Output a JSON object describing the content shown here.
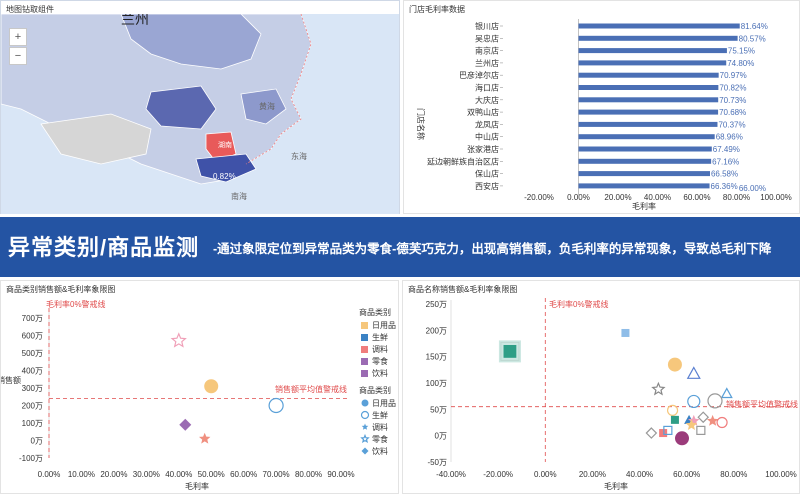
{
  "map": {
    "title": "地图钻取组件",
    "zoom_in": "+",
    "zoom_out": "−",
    "labels": [
      "兰州",
      "黄海",
      "东海",
      "南海",
      "湖南",
      "0.82%"
    ]
  },
  "bar": {
    "title": "门店毛利率数据",
    "ylabel": "门店名称",
    "xlabel": "毛利率",
    "cut_label": "66.00%"
  },
  "banner": {
    "title": "异常类别/商品监测",
    "desc": "-通过象限定位到异常品类为零食-德芙巧克力，出现高销售额，负毛利率的异常现象，导致总毛利下降"
  },
  "scatter1": {
    "title": "商品类别销售额&毛利率象限图",
    "threshold_label": "毛利率0%警戒线",
    "avg_label": "销售额平均值警戒线",
    "legend_title_1": "商品类别",
    "legend_title_2": "商品类别"
  },
  "scatter2": {
    "title": "商品名称销售额&毛利率象限图",
    "threshold_label": "毛利率0%警戒线",
    "avg_label": "销售额平均值警戒线"
  },
  "chart_data": [
    {
      "type": "bar",
      "orientation": "horizontal",
      "title": "门店毛利率数据",
      "xlabel": "毛利率",
      "ylabel": "门店名称",
      "categories": [
        "银川店",
        "吴忠店",
        "南京店",
        "兰州店",
        "巴彦淖尔店",
        "海口店",
        "大庆店",
        "双鸭山店",
        "龙凤店",
        "中山店",
        "张家港店",
        "延边朝鲜族自治区店",
        "保山店",
        "西安店"
      ],
      "values": [
        0.8164,
        0.8057,
        0.7515,
        0.748,
        0.7097,
        0.7082,
        0.7073,
        0.7068,
        0.7037,
        0.6896,
        0.6749,
        0.6716,
        0.6658,
        0.6636
      ],
      "value_labels": [
        "81.64%",
        "80.57%",
        "75.15%",
        "74.80%",
        "70.97%",
        "70.82%",
        "70.73%",
        "70.68%",
        "70.37%",
        "68.96%",
        "67.49%",
        "67.16%",
        "66.58%",
        "66.36%"
      ],
      "xlim": [
        -0.2,
        1.0
      ],
      "xticks": [
        "-20.00%",
        "0.00%",
        "20.00%",
        "40.00%",
        "60.00%",
        "80.00%",
        "100.00%"
      ],
      "color": "#4a6fb5"
    },
    {
      "type": "scatter",
      "title": "商品类别销售额&毛利率象限图",
      "xlabel": "毛利率",
      "ylabel": "销售额",
      "xlim": [
        0,
        0.9
      ],
      "ylim": [
        -100,
        700
      ],
      "xticks": [
        "0.00%",
        "10.00%",
        "20.00%",
        "30.00%",
        "40.00%",
        "50.00%",
        "60.00%",
        "70.00%",
        "80.00%",
        "90.00%"
      ],
      "yticks": [
        "-100万",
        "0万",
        "100万",
        "200万",
        "300万",
        "400万",
        "500万",
        "600万",
        "700万"
      ],
      "legend_1": {
        "title": "商品类别",
        "items": [
          "日用品",
          "生鲜",
          "调料",
          "零食",
          "饮料"
        ],
        "colors": [
          "#f6c77c",
          "#3b82c4",
          "#f07d7d",
          "#9b6bb3",
          "#9b6bb3"
        ]
      },
      "legend_2": {
        "title": "商品类别",
        "items": [
          "日用品",
          "生鲜",
          "调料",
          "零食",
          "饮料"
        ],
        "colors": [
          "#5aa0d8",
          "#5aa0d8",
          "#5aa0d8",
          "#5aa0d8",
          "#5aa0d8"
        ]
      },
      "threshold_x": 0,
      "avg_y": 240,
      "points": [
        {
          "category": "日用品",
          "x": 0.5,
          "y": 310,
          "shape": "circle",
          "color": "#f6c77c",
          "size": 7
        },
        {
          "category": "生鲜",
          "x": 0.7,
          "y": 200,
          "shape": "circle",
          "color": "#5aa0d8",
          "size": 7,
          "hollow": true
        },
        {
          "category": "零食",
          "x": 0.4,
          "y": 570,
          "shape": "star",
          "color": "#f0a0b8",
          "size": 7,
          "hollow": true
        },
        {
          "category": "调料",
          "x": 0.42,
          "y": 90,
          "shape": "diamond",
          "color": "#9b6bb3",
          "size": 6
        },
        {
          "category": "饮料",
          "x": 0.48,
          "y": 10,
          "shape": "star",
          "color": "#f09080",
          "size": 6
        }
      ]
    },
    {
      "type": "scatter",
      "title": "商品名称销售额&毛利率象限图",
      "xlabel": "毛利率",
      "ylabel": "",
      "xlim": [
        -0.4,
        1.0
      ],
      "ylim": [
        -50,
        250
      ],
      "xticks": [
        "-40.00%",
        "-20.00%",
        "0.00%",
        "20.00%",
        "40.00%",
        "60.00%",
        "80.00%",
        "100.00%"
      ],
      "yticks": [
        "-50万",
        "0万",
        "50万",
        "100万",
        "150万",
        "200万",
        "250万"
      ],
      "threshold_x": 0,
      "avg_y": 55,
      "points": [
        {
          "x": -0.15,
          "y": 160,
          "shape": "square",
          "color": "#2e9e86",
          "size": 8,
          "halo": true
        },
        {
          "x": 0.34,
          "y": 195,
          "shape": "square",
          "color": "#8fbde8",
          "size": 5
        },
        {
          "x": 0.55,
          "y": 135,
          "shape": "circle",
          "color": "#f6c77c",
          "size": 7
        },
        {
          "x": 0.63,
          "y": 118,
          "shape": "triangle",
          "color": "#5a7fd0",
          "size": 6,
          "hollow": true
        },
        {
          "x": 0.48,
          "y": 88,
          "shape": "star",
          "color": "#888888",
          "size": 6,
          "hollow": true
        },
        {
          "x": 0.77,
          "y": 80,
          "shape": "triangle",
          "color": "#5aa0d8",
          "size": 5,
          "hollow": true
        },
        {
          "x": 0.72,
          "y": 66,
          "shape": "circle",
          "color": "#999999",
          "size": 7,
          "hollow": true
        },
        {
          "x": 0.63,
          "y": 65,
          "shape": "circle",
          "color": "#5aa0d8",
          "size": 6,
          "hollow": true
        },
        {
          "x": 0.54,
          "y": 48,
          "shape": "circle",
          "color": "#f6c77c",
          "size": 5,
          "hollow": true
        },
        {
          "x": 0.61,
          "y": 30,
          "shape": "triangle",
          "color": "#3b82c4",
          "size": 5
        },
        {
          "x": 0.63,
          "y": 28,
          "shape": "star",
          "color": "#f0a0b8",
          "size": 6
        },
        {
          "x": 0.62,
          "y": 20,
          "shape": "star",
          "color": "#f6c77c",
          "size": 6
        },
        {
          "x": 0.71,
          "y": 28,
          "shape": "star",
          "color": "#f09080",
          "size": 6
        },
        {
          "x": 0.67,
          "y": 35,
          "shape": "diamond",
          "color": "#999999",
          "size": 5,
          "hollow": true
        },
        {
          "x": 0.55,
          "y": 30,
          "shape": "square",
          "color": "#2e9e86",
          "size": 5
        },
        {
          "x": 0.5,
          "y": 5,
          "shape": "square",
          "color": "#f07d7d",
          "size": 5
        },
        {
          "x": 0.58,
          "y": -5,
          "shape": "circle",
          "color": "#9b3b7b",
          "size": 7
        },
        {
          "x": 0.45,
          "y": 5,
          "shape": "diamond",
          "color": "#999999",
          "size": 5,
          "hollow": true
        },
        {
          "x": 0.52,
          "y": 10,
          "shape": "square",
          "color": "#5aa0d8",
          "size": 5,
          "hollow": true
        },
        {
          "x": 0.66,
          "y": 10,
          "shape": "square",
          "color": "#999999",
          "size": 5,
          "hollow": true
        },
        {
          "x": 0.75,
          "y": 25,
          "shape": "circle",
          "color": "#f07d7d",
          "size": 5,
          "hollow": true
        }
      ]
    }
  ]
}
